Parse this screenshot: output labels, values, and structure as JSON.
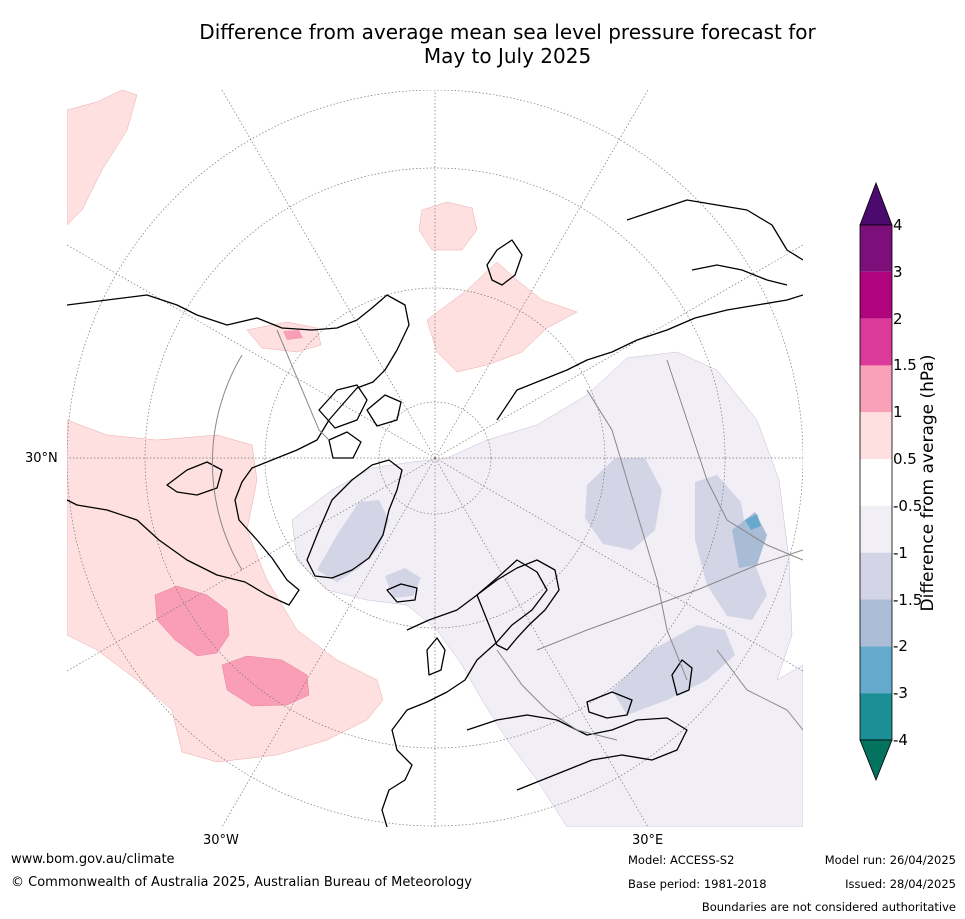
{
  "title": {
    "line1": "Difference from average mean sea level pressure forecast for",
    "line2": "May to July 2025"
  },
  "map": {
    "projection": "north polar stereographic",
    "graticule_labels": [
      "30°N",
      "30°W",
      "30°E"
    ],
    "anomaly_colors": {
      "pos_0_5_to_1": "#fde0df",
      "pos_1_to_1_5": "#f99eb6",
      "neg_0_5_to_1": "#f2eef6",
      "neg_1_to_1_5": "#d3d4e6",
      "neg_1_5_to_2": "#a9bcd6",
      "neg_2_to_3": "#65aacd"
    }
  },
  "colorbar": {
    "label": "Difference from average (hPa)",
    "ticks": [
      "4",
      "3",
      "2",
      "1.5",
      "1",
      "0.5",
      "-0.5",
      "-1",
      "-1.5",
      "-2",
      "-3",
      "-4"
    ],
    "colors": [
      "#4b0a6e",
      "#7c0f7a",
      "#b0047f",
      "#dc3a9a",
      "#f8a1b8",
      "#fde0df",
      "#ffffff",
      "#f2eef6",
      "#d3d4e6",
      "#aabcd6",
      "#65aacd",
      "#1c8f96",
      "#03725e"
    ]
  },
  "footer": {
    "website": "www.bom.gov.au/climate",
    "copyright": "© Commonwealth of Australia 2025, Australian Bureau of Meteorology",
    "model": "Model: ACCESS-S2",
    "base_period": "Base period: 1981-2018",
    "model_run": "Model run: 26/04/2025",
    "issued": "Issued: 28/04/2025",
    "disclaimer": "Boundaries are not considered authoritative"
  }
}
